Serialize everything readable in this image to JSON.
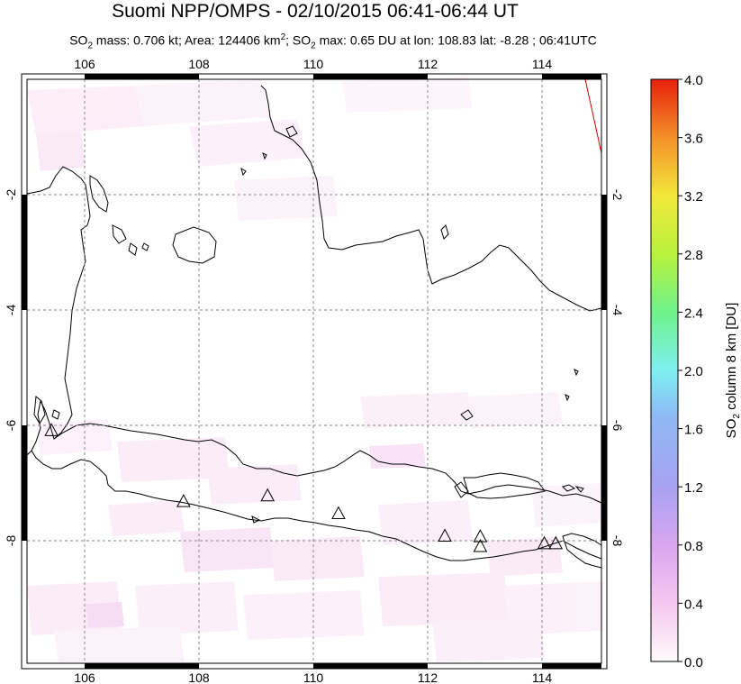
{
  "title": "Suomi NPP/OMPS - 02/10/2015 06:41-06:44 UT",
  "subtitle": {
    "so2_prefix": "SO",
    "so2_sub": "2",
    "mass_text": " mass: 0.706 kt; Area: 124406 km",
    "area_sup": "2",
    "max_prefix": "; SO",
    "max_sub": "2",
    "max_text": " max: 0.65 DU at lon: 108.83 lat: -8.28 ; 06:41UTC"
  },
  "map": {
    "lon_ticks": [
      "106",
      "108",
      "110",
      "112",
      "114"
    ],
    "lat_ticks": [
      "-2",
      "-4",
      "-6",
      "-8"
    ],
    "lon_range": [
      105,
      115
    ],
    "lat_range": [
      -10,
      0
    ]
  },
  "colorbar": {
    "ticks": [
      "4.0",
      "3.6",
      "3.2",
      "2.8",
      "2.4",
      "2.0",
      "1.6",
      "1.2",
      "0.8",
      "0.4",
      "0.0"
    ],
    "label_main": "SO",
    "label_sub": "2",
    "label_rest": " column 8 km [DU]",
    "colors": [
      "#fffafa",
      "#f5c7f0",
      "#d7a3f0",
      "#9b9bf5",
      "#7ee8f0",
      "#7cf27e",
      "#c8f23c",
      "#f5e83c",
      "#f5a02a",
      "#f04a1a",
      "#e81a0a"
    ]
  },
  "volcanoes": [
    {
      "lon": 105.42,
      "lat": -6.1
    },
    {
      "lon": 107.73,
      "lat": -7.33
    },
    {
      "lon": 109.2,
      "lat": -7.23
    },
    {
      "lon": 110.44,
      "lat": -7.54
    },
    {
      "lon": 112.3,
      "lat": -7.93
    },
    {
      "lon": 112.92,
      "lat": -7.94
    },
    {
      "lon": 112.92,
      "lat": -8.11
    },
    {
      "lon": 114.04,
      "lat": -8.06
    },
    {
      "lon": 114.24,
      "lat": -8.06
    }
  ]
}
